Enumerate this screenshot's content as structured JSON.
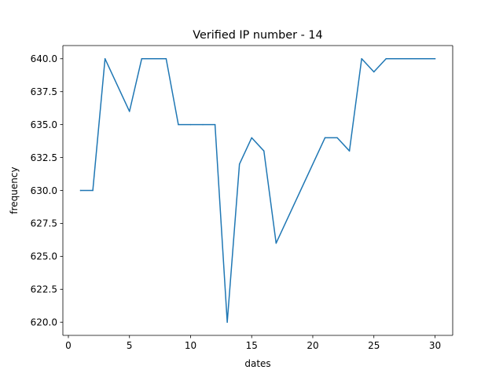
{
  "chart_data": {
    "type": "line",
    "title": "Verified IP number - 14",
    "xlabel": "dates",
    "ylabel": "frequency",
    "xlim": [
      -0.45,
      31.45
    ],
    "ylim": [
      619.0,
      641.0
    ],
    "xticks": [
      0,
      5,
      10,
      15,
      20,
      25,
      30
    ],
    "xtick_labels": [
      "0",
      "5",
      "10",
      "15",
      "20",
      "25",
      "30"
    ],
    "yticks": [
      620.0,
      622.5,
      625.0,
      627.5,
      630.0,
      632.5,
      635.0,
      637.5,
      640.0
    ],
    "ytick_labels": [
      "620.0",
      "622.5",
      "625.0",
      "627.5",
      "630.0",
      "632.5",
      "635.0",
      "637.5",
      "640.0"
    ],
    "grid": false,
    "series": [
      {
        "color": "#1f77b4",
        "x": [
          1,
          2,
          3,
          5,
          6,
          7,
          8,
          9,
          10,
          11,
          12,
          13,
          14,
          15,
          16,
          17,
          21,
          22,
          23,
          24,
          25,
          26,
          27,
          28,
          29,
          30
        ],
        "y": [
          630,
          630,
          640,
          636,
          640,
          640,
          640,
          635,
          635,
          635,
          635,
          620,
          632,
          634,
          633,
          626,
          634,
          634,
          633,
          640,
          639,
          640,
          640,
          640,
          640,
          640
        ]
      }
    ]
  }
}
